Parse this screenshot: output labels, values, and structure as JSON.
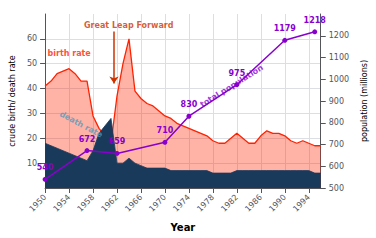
{
  "chart_data": {
    "type": "line",
    "xlabel": "Year",
    "ylabel": "crude birth/ death rate",
    "y2label": "population (millions)",
    "xlim": [
      1950,
      1996
    ],
    "xticks": [
      1950,
      1954,
      1958,
      1962,
      1966,
      1970,
      1974,
      1978,
      1982,
      1986,
      1990,
      1994
    ],
    "ylim": [
      0,
      70
    ],
    "yticks": [
      10,
      20,
      30,
      40,
      50,
      60
    ],
    "y2lim": [
      500,
      1300
    ],
    "y2ticks": [
      500,
      600,
      700,
      800,
      900,
      1000,
      1100,
      1200
    ],
    "grid": true,
    "series": [
      {
        "name": "birth rate",
        "type": "area",
        "color": "#ff2200",
        "x": [
          1950,
          1951,
          1952,
          1953,
          1954,
          1955,
          1956,
          1957,
          1958,
          1959,
          1960,
          1961,
          1962,
          1963,
          1964,
          1965,
          1966,
          1967,
          1968,
          1969,
          1970,
          1971,
          1972,
          1973,
          1974,
          1975,
          1976,
          1977,
          1978,
          1979,
          1980,
          1981,
          1982,
          1983,
          1984,
          1985,
          1986,
          1987,
          1988,
          1989,
          1990,
          1991,
          1992,
          1993,
          1994,
          1995,
          1996
        ],
        "values": [
          41,
          43,
          46,
          47,
          48,
          46,
          43,
          43,
          29,
          24,
          21,
          18,
          37,
          50,
          60,
          39,
          36,
          34,
          33,
          31,
          29,
          28,
          26,
          25,
          24,
          23,
          22,
          21,
          19,
          18,
          18,
          20,
          22,
          20,
          18,
          18,
          21,
          23,
          22,
          22,
          21,
          19,
          18,
          19,
          18,
          17,
          17
        ]
      },
      {
        "name": "death rate",
        "type": "area",
        "color": "#1a3a5c",
        "x": [
          1950,
          1951,
          1952,
          1953,
          1954,
          1955,
          1956,
          1957,
          1958,
          1959,
          1960,
          1961,
          1962,
          1963,
          1964,
          1965,
          1966,
          1967,
          1968,
          1969,
          1970,
          1971,
          1972,
          1973,
          1974,
          1975,
          1976,
          1977,
          1978,
          1979,
          1980,
          1981,
          1982,
          1983,
          1984,
          1985,
          1986,
          1987,
          1988,
          1989,
          1990,
          1991,
          1992,
          1993,
          1994,
          1995,
          1996
        ],
        "values": [
          18,
          17,
          16,
          15,
          14,
          13,
          12,
          11,
          15,
          22,
          25,
          28,
          10,
          10,
          12,
          10,
          9,
          8,
          8,
          8,
          8,
          7,
          7,
          7,
          7,
          7,
          7,
          7,
          6,
          6,
          6,
          6,
          7,
          7,
          7,
          7,
          7,
          7,
          7,
          7,
          7,
          7,
          7,
          7,
          7,
          6,
          6
        ]
      },
      {
        "name": "total population",
        "type": "line",
        "color": "#8800cc",
        "marker": "circle",
        "axis": "y2",
        "data_labels": true,
        "x": [
          1950,
          1957,
          1962,
          1970,
          1974,
          1982,
          1990,
          1995
        ],
        "values": [
          540,
          672,
          659,
          710,
          830,
          975,
          1179,
          1218
        ]
      }
    ],
    "annotations": [
      {
        "text": "birth rate",
        "x": 1950.4,
        "y": 54,
        "color": "#ff2200"
      },
      {
        "text": "death rate",
        "x": 1952.5,
        "y": 30,
        "color": "#5599bb"
      },
      {
        "text": "total population",
        "x": 1976,
        "y": 880,
        "axis": "y2",
        "color": "#8800cc"
      },
      {
        "text": "Great Leap Forward",
        "x": 1956.5,
        "y": 63,
        "color": "#cc3300",
        "arrow_to": [
          1961.5,
          42
        ]
      }
    ]
  }
}
